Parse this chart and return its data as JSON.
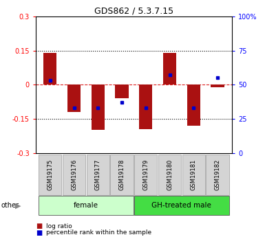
{
  "title": "GDS862 / 5.3.7.15",
  "samples": [
    "GSM19175",
    "GSM19176",
    "GSM19177",
    "GSM19178",
    "GSM19179",
    "GSM19180",
    "GSM19181",
    "GSM19182"
  ],
  "log_ratio": [
    0.14,
    -0.12,
    -0.2,
    -0.06,
    -0.195,
    0.14,
    -0.18,
    -0.01
  ],
  "percentile_rank": [
    53,
    33,
    33,
    37,
    33,
    57,
    33,
    55
  ],
  "groups": [
    {
      "label": "female",
      "start": 0,
      "end": 4,
      "color": "#ccffcc"
    },
    {
      "label": "GH-treated male",
      "start": 4,
      "end": 8,
      "color": "#44dd44"
    }
  ],
  "bar_color": "#aa1111",
  "dot_color": "#0000cc",
  "zero_line_color": "#dd2222",
  "background_color": "#ffffff"
}
